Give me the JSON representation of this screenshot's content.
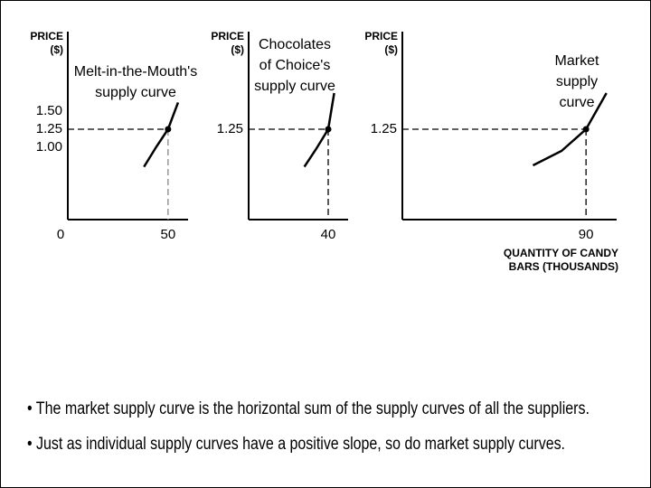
{
  "chart_data": [
    {
      "type": "line",
      "y_label": [
        "PRICE",
        "($)"
      ],
      "curve_label": [
        "Melt-in-the-Mouth's",
        "supply curve"
      ],
      "x": [
        38,
        44,
        50,
        55
      ],
      "series": [
        {
          "color": "#000000",
          "values": [
            0.73,
            1.0,
            1.25,
            1.62
          ]
        }
      ],
      "marker": {
        "x": 50,
        "y": 1.25
      },
      "xlim": [
        0,
        60
      ],
      "ylim": [
        0,
        2.6
      ],
      "xticks": [
        0,
        50
      ],
      "yticks": [
        {
          "value": 1.5,
          "label": "1.50"
        },
        1.25,
        {
          "value": 1.0,
          "label": "1.00"
        }
      ]
    },
    {
      "type": "line",
      "y_label": [
        "PRICE",
        "($)"
      ],
      "curve_label": [
        "Chocolates",
        "of Choice's",
        "supply curve"
      ],
      "x": [
        28,
        34,
        40,
        43
      ],
      "series": [
        {
          "color": "#000000",
          "values": [
            0.73,
            0.98,
            1.25,
            1.75
          ]
        }
      ],
      "marker": {
        "x": 40,
        "y": 1.25
      },
      "xlim": [
        0,
        50
      ],
      "ylim": [
        0,
        2.6
      ],
      "xticks": [
        40
      ],
      "yticks": [
        1.25
      ]
    },
    {
      "type": "line",
      "y_label": [
        "PRICE",
        "($)"
      ],
      "curve_label": [
        "Market",
        "supply",
        "curve"
      ],
      "x_label": [
        "QUANTITY OF CANDY",
        "BARS (THOUSANDS)"
      ],
      "x": [
        64,
        78,
        90,
        100
      ],
      "series": [
        {
          "color": "#000000",
          "values": [
            0.75,
            0.95,
            1.25,
            1.75
          ]
        }
      ],
      "marker": {
        "x": 90,
        "y": 1.25
      },
      "xlim": [
        0,
        105
      ],
      "ylim": [
        0,
        2.6
      ],
      "xticks": [
        90
      ],
      "yticks": [
        1.25
      ]
    }
  ],
  "bullets": [
    "• The market supply curve is the horizontal sum of the supply curves of all the suppliers.",
    "• Just as individual supply curves have a positive slope, so do market supply curves."
  ]
}
